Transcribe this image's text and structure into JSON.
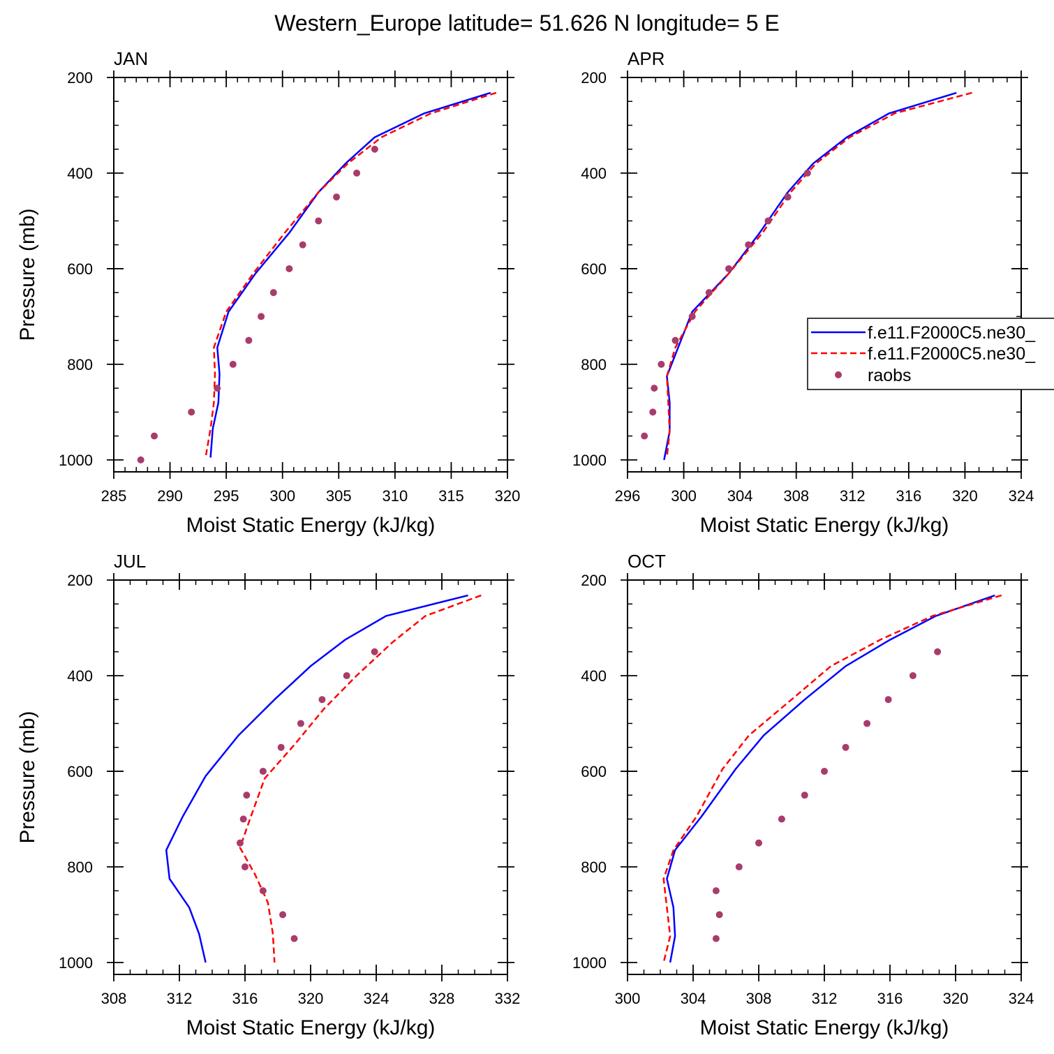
{
  "figure_title": "Western_Europe  latitude= 51.626 N longitude= 5 E",
  "legend": {
    "entries": [
      {
        "label": "f.e11.F2000C5.ne30_",
        "style": "solid",
        "color": "#0000ff"
      },
      {
        "label": "f.e11.F2000C5.ne30_",
        "style": "dashed",
        "color": "#ff0000"
      },
      {
        "label": "raobs",
        "style": "dot",
        "color": "#a83c6a"
      }
    ]
  },
  "chart_data": [
    {
      "type": "line",
      "panel": "JAN",
      "title": "JAN",
      "xlabel": "Moist Static Energy (kJ/kg)",
      "ylabel": "Pressure (mb)",
      "xlim": [
        285,
        320
      ],
      "xticks": [
        285,
        290,
        295,
        300,
        305,
        310,
        315,
        320
      ],
      "xminor": 1,
      "ylim": [
        200,
        1025
      ],
      "yticks": [
        200,
        400,
        600,
        800,
        1000
      ],
      "series": [
        {
          "name": "f.e11.F2000C5.ne30_",
          "style": "solid",
          "color": "#0000ff",
          "x": [
            318.5,
            312.6,
            308.2,
            305.6,
            303.2,
            300.6,
            297.6,
            295.2,
            294.2,
            294.4,
            294.3,
            293.8,
            293.6
          ],
          "y": [
            232,
            275,
            325,
            380,
            440,
            525,
            610,
            690,
            765,
            820,
            880,
            935,
            995
          ]
        },
        {
          "name": "f.e11.F2000C5.ne30_",
          "style": "dashed",
          "color": "#ff0000",
          "x": [
            319.0,
            313.2,
            308.8,
            305.8,
            303.2,
            300.2,
            297.4,
            295.0,
            293.9,
            294.0,
            293.9,
            293.6,
            293.2
          ],
          "y": [
            232,
            275,
            325,
            380,
            440,
            525,
            610,
            690,
            765,
            820,
            880,
            935,
            990
          ]
        },
        {
          "name": "raobs",
          "style": "dot",
          "color": "#a83c6a",
          "x": [
            308.2,
            306.6,
            304.8,
            303.2,
            301.8,
            300.6,
            299.2,
            298.1,
            297.0,
            295.6,
            294.2,
            291.9,
            288.6,
            287.4
          ],
          "y": [
            350,
            400,
            450,
            500,
            550,
            600,
            650,
            700,
            750,
            800,
            850,
            900,
            950,
            1000
          ]
        }
      ]
    },
    {
      "type": "line",
      "panel": "APR",
      "title": "APR",
      "xlabel": "Moist Static Energy (kJ/kg)",
      "ylabel": "",
      "xlim": [
        296,
        324
      ],
      "xticks": [
        296,
        300,
        304,
        308,
        312,
        316,
        320,
        324
      ],
      "xminor": 1,
      "ylim": [
        200,
        1025
      ],
      "yticks": [
        200,
        400,
        600,
        800,
        1000
      ],
      "series": [
        {
          "name": "f.e11.F2000C5.ne30_",
          "style": "solid",
          "color": "#0000ff",
          "x": [
            319.4,
            314.6,
            311.6,
            309.2,
            307.4,
            305.4,
            303.2,
            300.6,
            299.6,
            298.8,
            299.0,
            299.0,
            298.6
          ],
          "y": [
            232,
            275,
            325,
            380,
            440,
            525,
            610,
            690,
            765,
            825,
            880,
            940,
            1000
          ]
        },
        {
          "name": "f.e11.F2000C5.ne30_",
          "style": "dashed",
          "color": "#ff0000",
          "x": [
            320.5,
            315.0,
            311.8,
            309.4,
            307.6,
            305.6,
            303.2,
            300.8,
            299.4,
            298.8,
            298.9,
            299.0,
            298.8
          ],
          "y": [
            232,
            275,
            325,
            380,
            440,
            525,
            610,
            690,
            765,
            825,
            880,
            940,
            995
          ]
        },
        {
          "name": "raobs",
          "style": "dot",
          "color": "#a83c6a",
          "x": [
            308.8,
            307.4,
            306.0,
            304.6,
            303.2,
            301.8,
            300.6,
            299.4,
            298.4,
            297.9,
            297.8,
            297.2
          ],
          "y": [
            400,
            450,
            500,
            550,
            600,
            650,
            700,
            750,
            800,
            850,
            900,
            950
          ]
        }
      ]
    },
    {
      "type": "line",
      "panel": "JUL",
      "title": "JUL",
      "xlabel": "Moist Static Energy (kJ/kg)",
      "ylabel": "Pressure (mb)",
      "xlim": [
        308,
        332
      ],
      "xticks": [
        308,
        312,
        316,
        320,
        324,
        328,
        332
      ],
      "xminor": 1,
      "ylim": [
        200,
        1025
      ],
      "yticks": [
        200,
        400,
        600,
        800,
        1000
      ],
      "series": [
        {
          "name": "f.e11.F2000C5.ne30_",
          "style": "solid",
          "color": "#0000ff",
          "x": [
            329.6,
            324.6,
            322.1,
            320.0,
            317.8,
            315.6,
            313.6,
            312.2,
            311.2,
            311.4,
            312.6,
            313.2,
            313.6
          ],
          "y": [
            232,
            275,
            325,
            380,
            450,
            525,
            610,
            695,
            765,
            825,
            885,
            940,
            1000
          ]
        },
        {
          "name": "f.e11.F2000C5.ne30_",
          "style": "dashed",
          "color": "#ff0000",
          "x": [
            330.4,
            327.0,
            325.0,
            322.8,
            320.8,
            319.0,
            317.2,
            316.3,
            315.7,
            316.6,
            317.4,
            317.7,
            317.8
          ],
          "y": [
            232,
            275,
            330,
            400,
            470,
            545,
            615,
            700,
            760,
            815,
            875,
            940,
            1000
          ]
        },
        {
          "name": "raobs",
          "style": "dot",
          "color": "#a83c6a",
          "x": [
            323.9,
            322.2,
            320.7,
            319.4,
            318.2,
            317.1,
            316.1,
            315.9,
            315.7,
            316.0,
            317.1,
            318.3,
            319.0
          ],
          "y": [
            350,
            400,
            450,
            500,
            550,
            600,
            650,
            700,
            750,
            800,
            850,
            900,
            950
          ]
        }
      ]
    },
    {
      "type": "line",
      "panel": "OCT",
      "title": "OCT",
      "xlabel": "Moist Static Energy (kJ/kg)",
      "ylabel": "",
      "xlim": [
        300,
        324
      ],
      "xticks": [
        300,
        304,
        308,
        312,
        316,
        320,
        324
      ],
      "xminor": 1,
      "ylim": [
        200,
        1025
      ],
      "yticks": [
        200,
        400,
        600,
        800,
        1000
      ],
      "series": [
        {
          "name": "f.e11.F2000C5.ne30_",
          "style": "solid",
          "color": "#0000ff",
          "x": [
            322.4,
            318.8,
            316.0,
            313.3,
            310.8,
            308.3,
            306.6,
            304.5,
            302.9,
            302.4,
            302.8,
            302.9,
            302.6
          ],
          "y": [
            232,
            275,
            325,
            380,
            450,
            525,
            595,
            695,
            765,
            825,
            885,
            945,
            1000
          ]
        },
        {
          "name": "f.e11.F2000C5.ne30_",
          "style": "dashed",
          "color": "#ff0000",
          "x": [
            322.8,
            318.6,
            315.4,
            312.4,
            310.0,
            307.4,
            305.8,
            304.2,
            302.8,
            302.2,
            302.4,
            302.6,
            302.2
          ],
          "y": [
            232,
            275,
            325,
            380,
            450,
            525,
            595,
            695,
            765,
            825,
            885,
            945,
            1000
          ]
        },
        {
          "name": "raobs",
          "style": "dot",
          "color": "#a83c6a",
          "x": [
            318.9,
            317.4,
            315.9,
            314.6,
            313.3,
            312.0,
            310.8,
            309.4,
            308.0,
            306.8,
            305.4,
            305.6,
            305.4
          ],
          "y": [
            350,
            400,
            450,
            500,
            550,
            600,
            650,
            700,
            750,
            800,
            850,
            900,
            950
          ]
        }
      ]
    }
  ]
}
